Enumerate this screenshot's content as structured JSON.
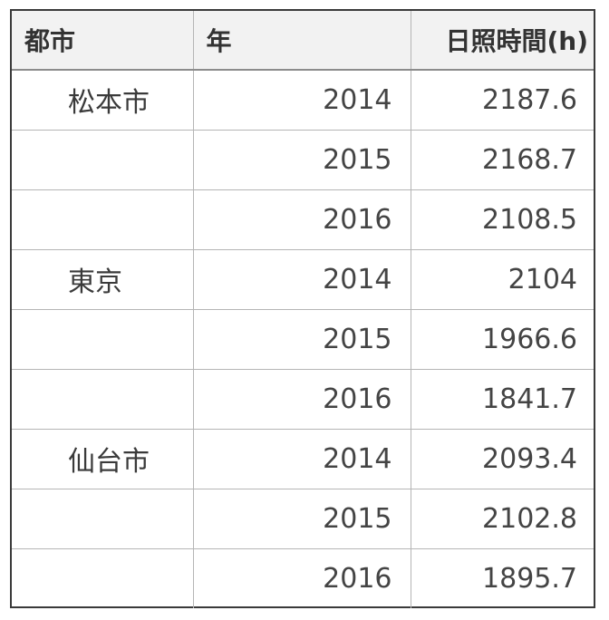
{
  "table": {
    "headers": {
      "city": "都市",
      "year": "年",
      "sunshine": "日照時間(h)"
    },
    "rows": [
      {
        "city": "松本市",
        "year": "2014",
        "sunshine": "2187.6"
      },
      {
        "city": "",
        "year": "2015",
        "sunshine": "2168.7"
      },
      {
        "city": "",
        "year": "2016",
        "sunshine": "2108.5"
      },
      {
        "city": "東京",
        "year": "2014",
        "sunshine": "2104"
      },
      {
        "city": "",
        "year": "2015",
        "sunshine": "1966.6"
      },
      {
        "city": "",
        "year": "2016",
        "sunshine": "1841.7"
      },
      {
        "city": "仙台市",
        "year": "2014",
        "sunshine": "2093.4"
      },
      {
        "city": "",
        "year": "2015",
        "sunshine": "2102.8"
      },
      {
        "city": "",
        "year": "2016",
        "sunshine": "1895.7"
      }
    ]
  }
}
